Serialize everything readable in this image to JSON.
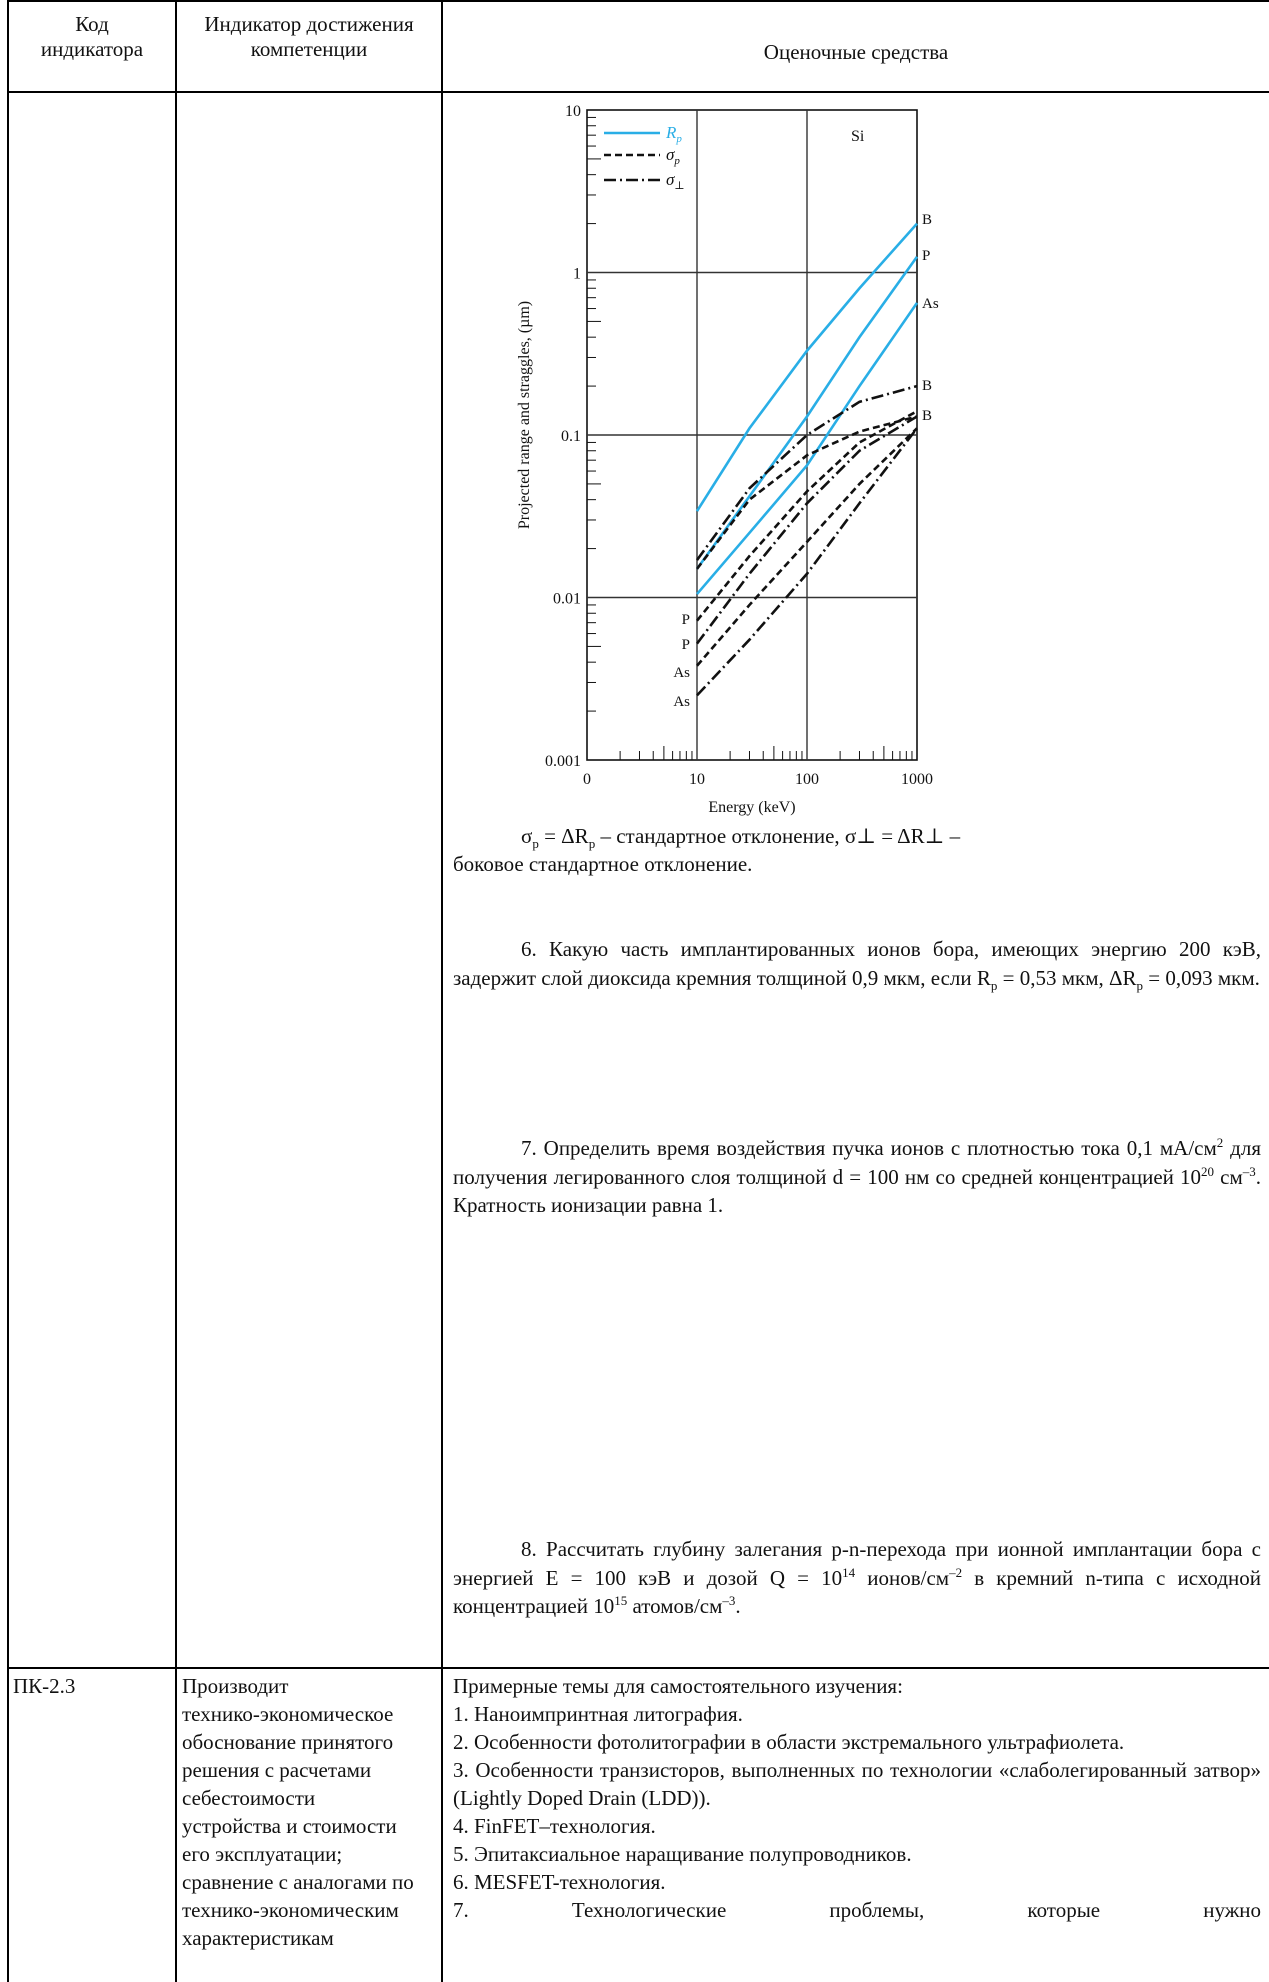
{
  "table": {
    "headers": {
      "code": "Код\nиндикатора",
      "indicator": "Индикатор достижения\nкомпетенции",
      "means": "Оценочные средства"
    }
  },
  "figure": {
    "y_axis_label": "Projected range and straggles, (µm)",
    "x_axis_label": "Energy (keV)",
    "y_ticks": [
      "10",
      "1",
      "0.1",
      "0.01",
      "0.001"
    ],
    "x_ticks": [
      "0",
      "10",
      "100",
      "1000"
    ],
    "material": "Si",
    "legend": [
      {
        "symbol": "R",
        "sub": "p",
        "style": "solid",
        "color": "#29aee6"
      },
      {
        "symbol": "σ",
        "sub": "p",
        "style": "dashed",
        "color": "#111111"
      },
      {
        "symbol": "σ",
        "sub": "⊥",
        "style": "dashdot",
        "color": "#111111"
      }
    ],
    "right_labels": [
      "B",
      "P",
      "As",
      "B",
      "B"
    ],
    "left_labels": [
      "P",
      "P",
      "As",
      "As"
    ],
    "colors": {
      "rp": "#29aee6",
      "ink": "#111111",
      "grid": "#333333"
    }
  },
  "chart_data": {
    "type": "line",
    "xscale": "log",
    "yscale": "log",
    "xlim": [
      1,
      1000
    ],
    "ylim": [
      0.001,
      10
    ],
    "xlabel": "Energy (keV)",
    "ylabel": "Projected range and straggles, (µm)",
    "legend_placement": "top-left",
    "grid": true,
    "series": [
      {
        "name": "B",
        "kind": "Rp",
        "style": "solid",
        "x": [
          10,
          30,
          100,
          300,
          1000
        ],
        "y": [
          0.034,
          0.11,
          0.33,
          0.8,
          2.0
        ]
      },
      {
        "name": "P",
        "kind": "Rp",
        "style": "solid",
        "x": [
          10,
          30,
          100,
          300,
          1000
        ],
        "y": [
          0.015,
          0.042,
          0.13,
          0.4,
          1.25
        ]
      },
      {
        "name": "As",
        "kind": "Rp",
        "style": "solid",
        "x": [
          10,
          30,
          100,
          300,
          1000
        ],
        "y": [
          0.0105,
          0.025,
          0.065,
          0.2,
          0.65
        ]
      },
      {
        "name": "B",
        "kind": "σp",
        "style": "dashed",
        "x": [
          10,
          30,
          100,
          300,
          1000
        ],
        "y": [
          0.015,
          0.04,
          0.075,
          0.105,
          0.13
        ]
      },
      {
        "name": "P",
        "kind": "σp",
        "style": "dashed",
        "x": [
          10,
          30,
          100,
          300,
          1000
        ],
        "y": [
          0.0072,
          0.018,
          0.045,
          0.09,
          0.14
        ]
      },
      {
        "name": "As",
        "kind": "σp",
        "style": "dashed",
        "x": [
          10,
          30,
          100,
          300,
          1000
        ],
        "y": [
          0.0038,
          0.009,
          0.022,
          0.05,
          0.11
        ]
      },
      {
        "name": "B",
        "kind": "σ⊥",
        "style": "dashdot",
        "x": [
          10,
          30,
          100,
          300,
          1000
        ],
        "y": [
          0.017,
          0.047,
          0.1,
          0.16,
          0.2
        ]
      },
      {
        "name": "P",
        "kind": "σ⊥",
        "style": "dashdot",
        "x": [
          10,
          30,
          100,
          300,
          1000
        ],
        "y": [
          0.0052,
          0.014,
          0.038,
          0.08,
          0.13
        ]
      },
      {
        "name": "As",
        "kind": "σ⊥",
        "style": "dashdot",
        "x": [
          10,
          30,
          100,
          300,
          1000
        ],
        "y": [
          0.0025,
          0.0055,
          0.014,
          0.038,
          0.11
        ]
      }
    ]
  },
  "note": {
    "sigma_p": "σ",
    "sigma_p_sub": "p",
    "eq1": " = ΔR",
    "eq1_sub": "p",
    "eq1_rest": " – стандартное отклонение, σ⊥ = ΔR⊥ –",
    "line2": "боковое стандартное отклонение."
  },
  "q6": {
    "p1": "6. Какую часть имплантированных ионов бора, имеющих энергию 200 кэВ, задержит слой диоксида кремния толщиной 0,9 мкм, если R",
    "s1": "p",
    "p2": " = 0,53 мкм, ΔR",
    "s2": "p",
    "p3": " = 0,093 мкм."
  },
  "q7": {
    "p1": "7. Определить время воздействия пучка ионов с плотностью тока 0,1 мА/см",
    "s1": "2",
    "p2": " для получения легированного слоя толщиной d = 100 нм со средней концентрацией 10",
    "s2": "20",
    "p3": " см",
    "s3": "–3",
    "p4": ". Кратность ионизации равна 1."
  },
  "q8": {
    "p1": "8. Рассчитать глубину залегания p-n-перехода при ионной имплантации бора с энергией E = 100 кэВ и дозой Q = 10",
    "s1": "14",
    "p2": " ионов/см",
    "s2": "–2",
    "p3": " в кремний n-типа с исходной концентрацией 10",
    "s3": "15",
    "p4": " атомов/см",
    "s4": "–3",
    "p5": "."
  },
  "row2": {
    "code": "ПК-2.3",
    "indicator": [
      "Производит",
      "технико-экономическое",
      "обоснование принятого",
      "решения с расчетами",
      "себестоимости",
      "устройства и стоимости",
      "его эксплуатации;",
      "сравнение с аналогами по",
      "технико-экономическим",
      "характеристикам"
    ],
    "intro": "Примерные темы для самостоятельного изучения:",
    "topics": [
      "1. Наноимпринтная литография.",
      "2. Особенности фотолитографии в области экстремального ультрафиолета.",
      "3. Особенности транзисторов, выполненных по технологии «слаболегированный затвор» (Lightly Doped Drain (LDD)).",
      "4. FinFET–технология.",
      "5. Эпитаксиальное наращивание полупроводников.",
      "6. MESFET-технология.",
      "7. Технологические проблемы, которые нужно"
    ]
  }
}
